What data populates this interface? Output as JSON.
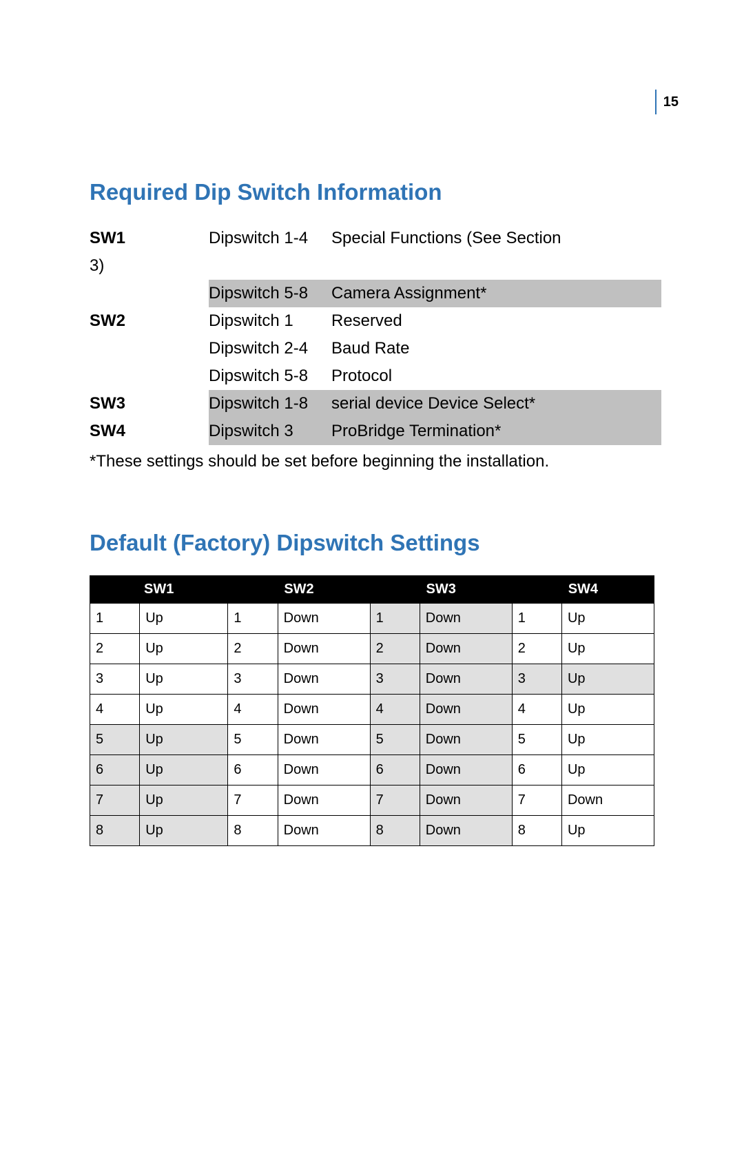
{
  "page_number": "15",
  "heading_color": "#2f74b5",
  "section1": {
    "title": "Required Dip Switch Information",
    "rows": [
      {
        "sw": "SW1",
        "sw_suffix": "3)",
        "dip": "Dipswitch 1-4",
        "desc": "Special Functions (See Section",
        "shaded": false
      },
      {
        "sw": "",
        "dip": "Dipswitch 5-8",
        "desc": "Camera Assignment*",
        "shaded": true
      },
      {
        "sw": "SW2",
        "dip": "Dipswitch 1",
        "desc": "Reserved",
        "shaded": false
      },
      {
        "sw": "",
        "dip": "Dipswitch 2-4",
        "desc": "Baud Rate",
        "shaded": false
      },
      {
        "sw": "",
        "dip": "Dipswitch 5-8",
        "desc": "Protocol",
        "shaded": false
      },
      {
        "sw": "SW3",
        "dip": "Dipswitch 1-8",
        "desc": "serial device Device Select*",
        "shaded": true
      },
      {
        "sw": "SW4",
        "dip": "Dipswitch 3",
        "desc": "ProBridge Termination*",
        "shaded": true
      }
    ],
    "footnote": "*These settings should be set before beginning the installation."
  },
  "section2": {
    "title": "Default (Factory) Dipswitch Settings",
    "headers": [
      "SW1",
      "SW2",
      "SW3",
      "SW4"
    ],
    "grey_cell_color": "#e0e0e0",
    "rows": [
      {
        "cells": [
          {
            "n": "1",
            "v": "Up",
            "g": false
          },
          {
            "n": "1",
            "v": "Down",
            "g": false
          },
          {
            "n": "1",
            "v": "Down",
            "g": true
          },
          {
            "n": "1",
            "v": "Up",
            "g": false
          }
        ]
      },
      {
        "cells": [
          {
            "n": "2",
            "v": "Up",
            "g": false
          },
          {
            "n": "2",
            "v": "Down",
            "g": false
          },
          {
            "n": "2",
            "v": "Down",
            "g": true
          },
          {
            "n": "2",
            "v": "Up",
            "g": false
          }
        ]
      },
      {
        "cells": [
          {
            "n": "3",
            "v": "Up",
            "g": false
          },
          {
            "n": "3",
            "v": "Down",
            "g": false
          },
          {
            "n": "3",
            "v": "Down",
            "g": true
          },
          {
            "n": "3",
            "v": "Up",
            "g": true
          }
        ]
      },
      {
        "cells": [
          {
            "n": "4",
            "v": "Up",
            "g": false
          },
          {
            "n": "4",
            "v": "Down",
            "g": false
          },
          {
            "n": "4",
            "v": "Down",
            "g": true
          },
          {
            "n": "4",
            "v": "Up",
            "g": false
          }
        ]
      },
      {
        "cells": [
          {
            "n": "5",
            "v": "Up",
            "g": true
          },
          {
            "n": "5",
            "v": "Down",
            "g": false
          },
          {
            "n": "5",
            "v": "Down",
            "g": true
          },
          {
            "n": "5",
            "v": "Up",
            "g": false
          }
        ]
      },
      {
        "cells": [
          {
            "n": "6",
            "v": "Up",
            "g": true
          },
          {
            "n": "6",
            "v": "Down",
            "g": false
          },
          {
            "n": "6",
            "v": "Down",
            "g": true
          },
          {
            "n": "6",
            "v": "Up",
            "g": false
          }
        ]
      },
      {
        "cells": [
          {
            "n": "7",
            "v": "Up",
            "g": true
          },
          {
            "n": "7",
            "v": "Down",
            "g": false
          },
          {
            "n": "7",
            "v": "Down",
            "g": true
          },
          {
            "n": "7",
            "v": "Down",
            "g": false
          }
        ]
      },
      {
        "cells": [
          {
            "n": "8",
            "v": "Up",
            "g": true
          },
          {
            "n": "8",
            "v": "Down",
            "g": false
          },
          {
            "n": "8",
            "v": "Down",
            "g": true
          },
          {
            "n": "8",
            "v": "Up",
            "g": false
          }
        ]
      }
    ]
  }
}
